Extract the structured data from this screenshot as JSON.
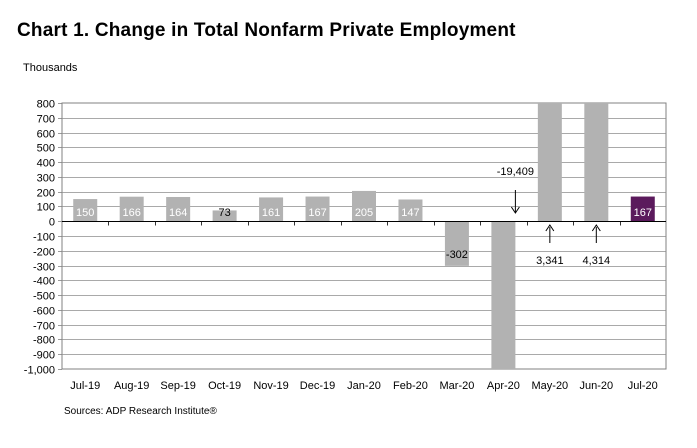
{
  "title": "Chart 1. Change in Total Nonfarm Private Employment",
  "units_label": "Thousands",
  "source": "Sources: ADP Research Institute®",
  "chart_data": {
    "type": "bar",
    "categories": [
      "Jul-19",
      "Aug-19",
      "Sep-19",
      "Oct-19",
      "Nov-19",
      "Dec-19",
      "Jan-20",
      "Feb-20",
      "Mar-20",
      "Apr-20",
      "May-20",
      "Jun-20",
      "Jul-20"
    ],
    "values": [
      150,
      166,
      164,
      73,
      161,
      167,
      205,
      147,
      -302,
      -19409,
      3341,
      4314,
      167
    ],
    "data_labels": [
      "150",
      "166",
      "164",
      "73",
      "161",
      "167",
      "205",
      "147",
      "-302",
      "-19,409",
      "3,341",
      "4,314",
      "167"
    ],
    "ylim": [
      -1000,
      800
    ],
    "yticks": [
      800,
      700,
      600,
      500,
      400,
      300,
      200,
      100,
      0,
      -100,
      -200,
      -300,
      -400,
      -500,
      -600,
      -700,
      -800,
      -900,
      -1000
    ],
    "ytick_labels": [
      "800",
      "700",
      "600",
      "500",
      "400",
      "300",
      "200",
      "100",
      "0",
      "-100",
      "-200",
      "-300",
      "-400",
      "-500",
      "-600",
      "-700",
      "-800",
      "-900",
      "-1,000"
    ],
    "ylabel": "Thousands",
    "xlabel": "",
    "grid": true,
    "bar_color": "#b2b2b2",
    "highlight_color": "#5b1a5c",
    "highlight_index": 12,
    "label_colors": {
      "inside": "#ffffff",
      "outside": "#000000"
    }
  }
}
